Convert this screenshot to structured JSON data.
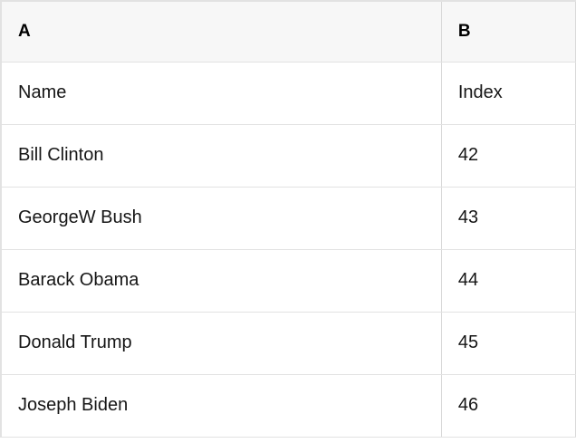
{
  "theme": {
    "header-bg": "#f7f7f7",
    "body-bg": "#ffffff",
    "border": "#e2e2e2",
    "divider": "#d9d9d9",
    "header-text": "#000000",
    "cell-text": "#161616"
  },
  "spreadsheet": {
    "column_headers": [
      "A",
      "B"
    ],
    "rows": [
      [
        "Name",
        "Index"
      ],
      [
        "Bill Clinton",
        "42"
      ],
      [
        "GeorgeW Bush",
        "43"
      ],
      [
        "Barack Obama",
        "44"
      ],
      [
        "Donald Trump",
        "45"
      ],
      [
        "Joseph Biden",
        "46"
      ]
    ]
  }
}
